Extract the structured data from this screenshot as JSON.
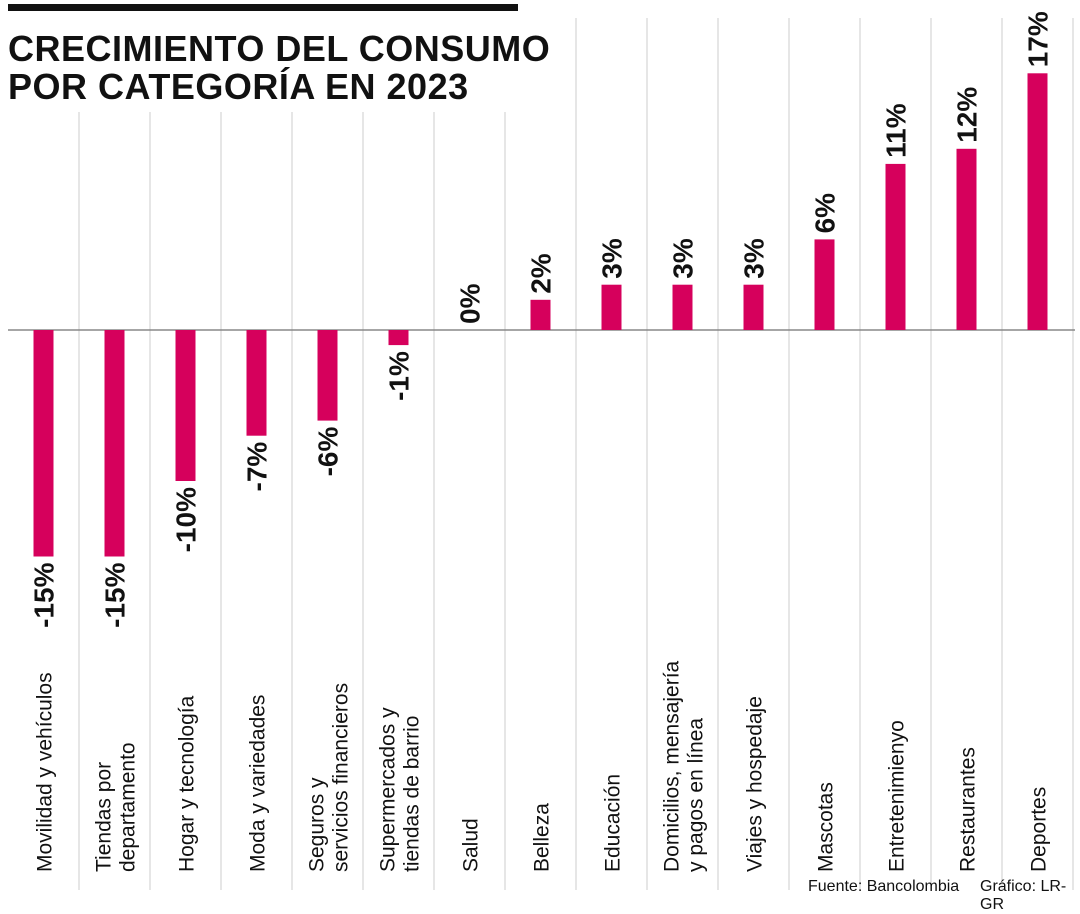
{
  "title_lines": [
    "CRECIMIENTO DEL CONSUMO",
    "POR CATEGORÍA EN 2023"
  ],
  "footer": {
    "source": "Fuente: Bancolombia",
    "credit": "Gráfico: LR-GR"
  },
  "colors": {
    "bar": "#d6005c",
    "text": "#111111",
    "grid": "#cccccc",
    "axis": "#888888"
  },
  "chart_data": {
    "type": "bar",
    "orientation": "vertical",
    "title": "CRECIMIENTO DEL CONSUMO POR CATEGORÍA EN 2023",
    "unit": "%",
    "categories": [
      [
        "Movilidad y vehículos"
      ],
      [
        "Tiendas por",
        "departamento"
      ],
      [
        "Hogar y tecnología"
      ],
      [
        "Moda y variedades"
      ],
      [
        "Seguros y",
        "servicios financieros"
      ],
      [
        "Supermercados y",
        "tiendas de barrio"
      ],
      [
        "Salud"
      ],
      [
        "Belleza"
      ],
      [
        "Educación"
      ],
      [
        "Domicilios, mensajería",
        "y pagos en línea"
      ],
      [
        "Viajes y hospedaje"
      ],
      [
        "Mascotas"
      ],
      [
        "Entretenimienyo"
      ],
      [
        "Restaurantes"
      ],
      [
        "Deportes"
      ]
    ],
    "values": [
      -15,
      -15,
      -10,
      -7,
      -6,
      -1,
      0,
      2,
      3,
      3,
      3,
      6,
      11,
      12,
      17
    ],
    "labels": [
      "-15%",
      "-15%",
      "-10%",
      "-7%",
      "-6%",
      "-1%",
      "0%",
      "2%",
      "3%",
      "3%",
      "3%",
      "6%",
      "11%",
      "12%",
      "17%"
    ],
    "ylim": [
      -15,
      17
    ],
    "xlabel": "",
    "ylabel": ""
  }
}
